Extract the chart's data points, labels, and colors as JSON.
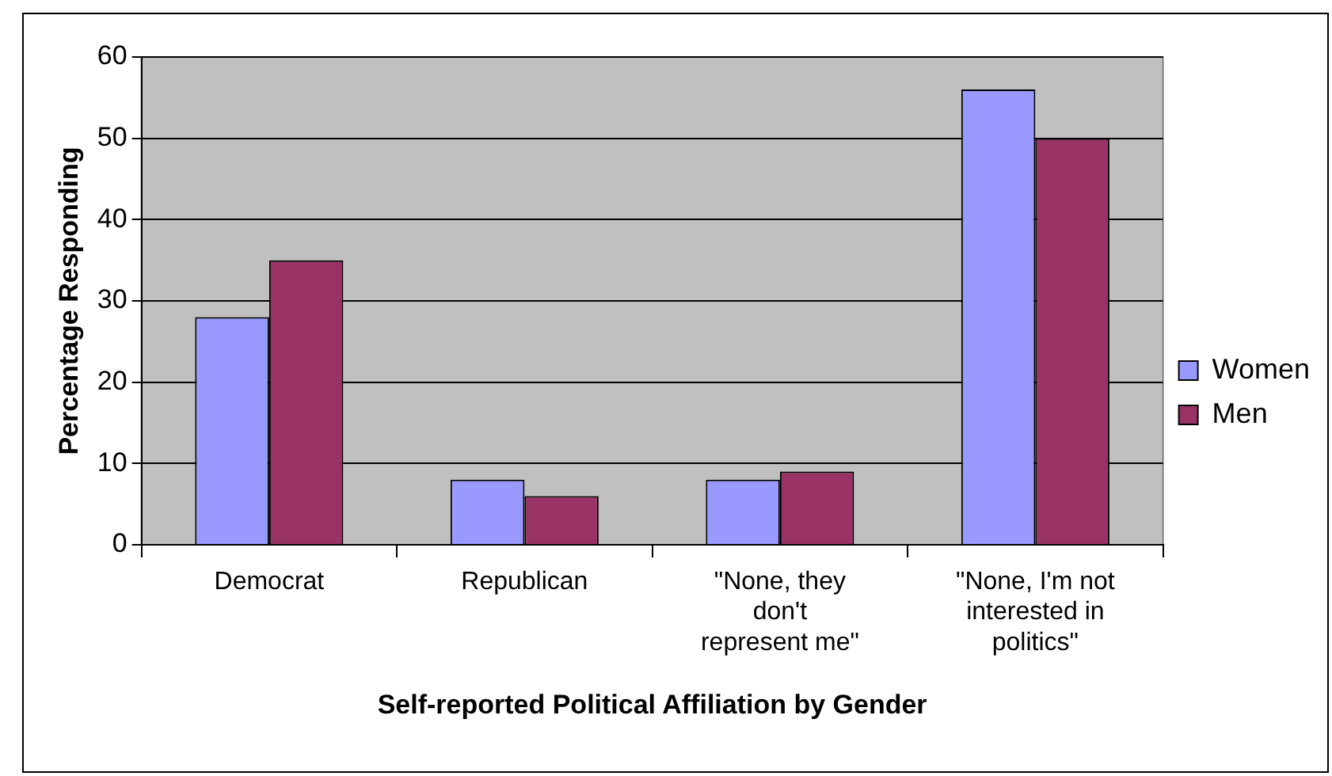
{
  "chart_data": {
    "type": "bar",
    "xlabel": "Self-reported Political Affiliation by Gender",
    "ylabel": "Percentage Responding",
    "categories": [
      "Democrat",
      "Republican",
      "\"None, they don't represent me\"",
      "\"None, I'm not interested in politics\""
    ],
    "series": [
      {
        "name": "Women",
        "color": "#9999ff",
        "values": [
          28,
          8,
          8,
          56
        ]
      },
      {
        "name": "Men",
        "color": "#993366",
        "values": [
          35,
          6,
          9,
          50
        ]
      }
    ],
    "ylim": [
      0,
      60
    ],
    "yticks": [
      0,
      10,
      20,
      30,
      40,
      50,
      60
    ],
    "grid": "y",
    "legend": "right"
  }
}
